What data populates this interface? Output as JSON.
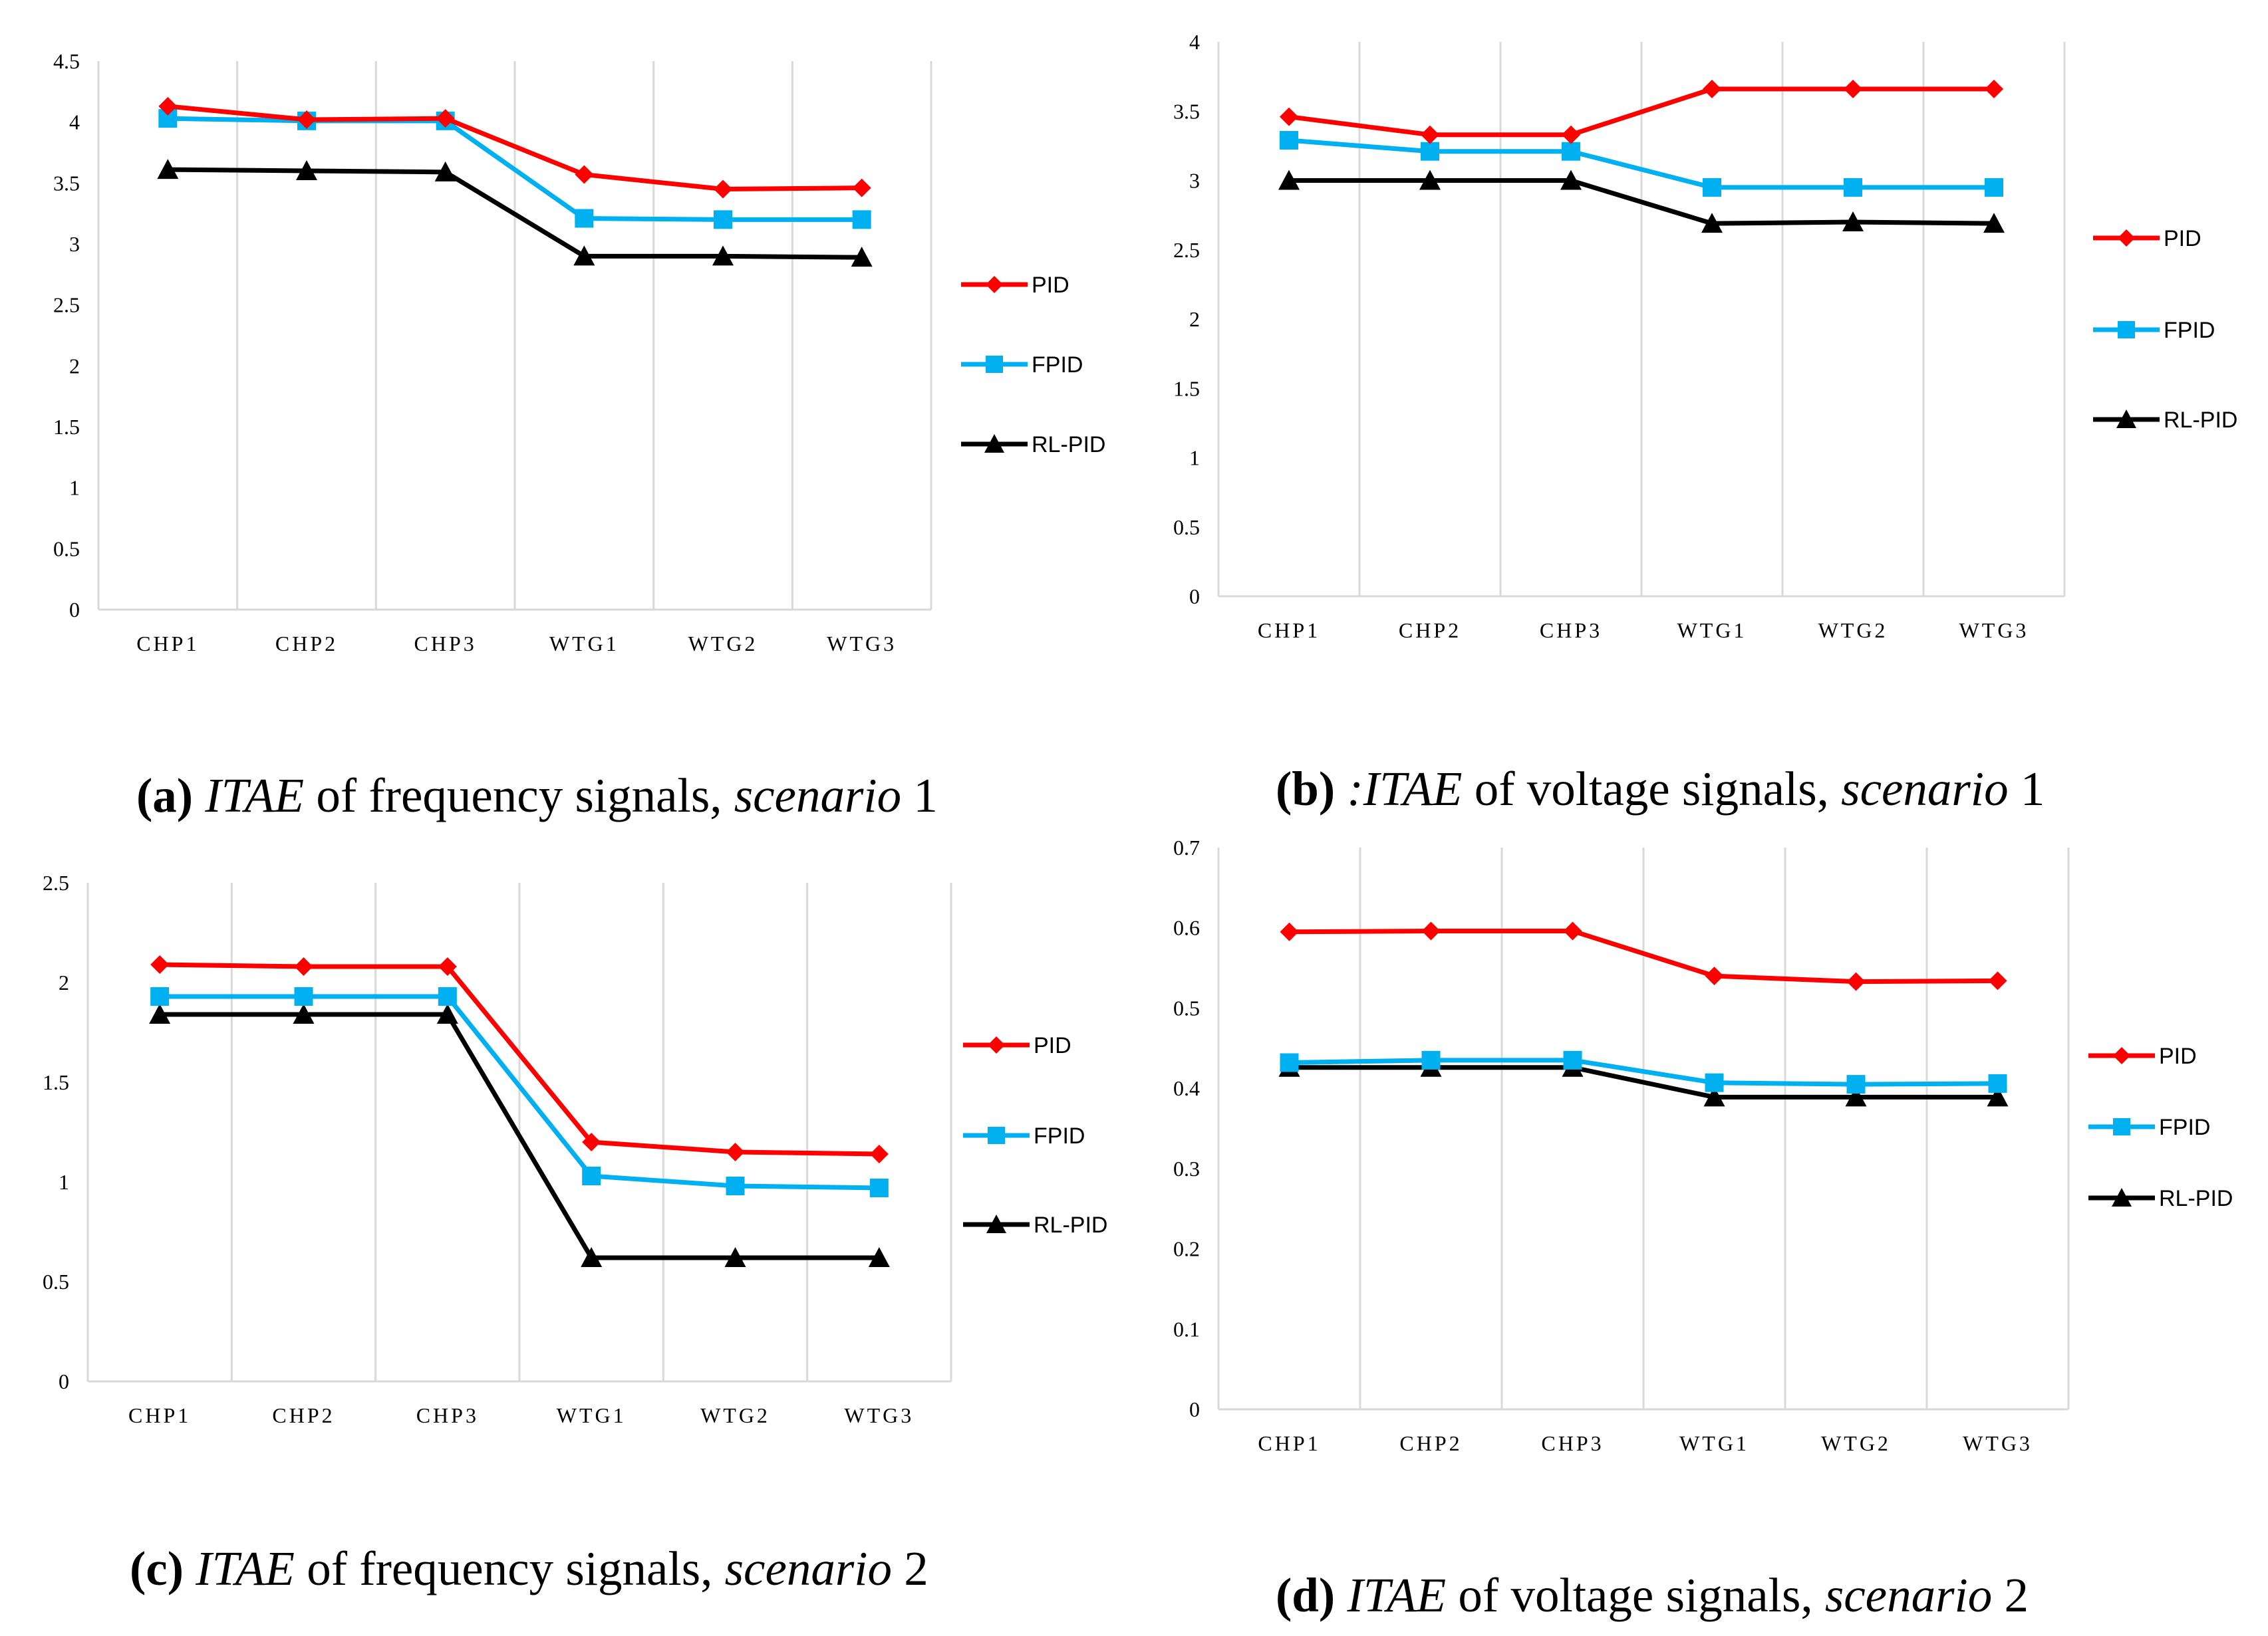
{
  "colors": {
    "PID": "#ff0000",
    "FPID": "#00b0f0",
    "RL-PID": "#000000",
    "grid": "#d9d9d9"
  },
  "chart_data": [
    {
      "id": "a",
      "type": "line",
      "caption": {
        "label": "(a)",
        "itae": "ITAE",
        "middle": " of frequency signals, ",
        "scenario": "scenario",
        "num": " 1"
      },
      "categories": [
        "CHP1",
        "CHP2",
        "CHP3",
        "WTG1",
        "WTG2",
        "WTG3"
      ],
      "yticks": [
        "0",
        "0.5",
        "1",
        "1.5",
        "2",
        "2.5",
        "3",
        "3.5",
        "4",
        "4.5"
      ],
      "ylim": [
        0,
        4.5
      ],
      "legend_position": "right",
      "series": [
        {
          "name": "PID",
          "marker": "diamond",
          "values": [
            4.13,
            4.02,
            4.03,
            3.57,
            3.45,
            3.46
          ]
        },
        {
          "name": "FPID",
          "marker": "square",
          "values": [
            4.03,
            4.01,
            4.01,
            3.21,
            3.2,
            3.2
          ]
        },
        {
          "name": "RL-PID",
          "marker": "triangle",
          "values": [
            3.61,
            3.6,
            3.59,
            2.9,
            2.9,
            2.89
          ]
        }
      ]
    },
    {
      "id": "b",
      "type": "line",
      "caption": {
        "label": "(b)",
        "itae": ":ITAE",
        "middle": " of voltage signals, ",
        "scenario": "scenario",
        "num": " 1"
      },
      "categories": [
        "CHP1",
        "CHP2",
        "CHP3",
        "WTG1",
        "WTG2",
        "WTG3"
      ],
      "yticks": [
        "0",
        "0.5",
        "1",
        "1.5",
        "2",
        "2.5",
        "3",
        "3.5",
        "4"
      ],
      "ylim": [
        0,
        4
      ],
      "legend_position": "right",
      "series": [
        {
          "name": "PID",
          "marker": "diamond",
          "values": [
            3.46,
            3.33,
            3.33,
            3.66,
            3.66,
            3.66
          ]
        },
        {
          "name": "FPID",
          "marker": "square",
          "values": [
            3.29,
            3.21,
            3.21,
            2.95,
            2.95,
            2.95
          ]
        },
        {
          "name": "RL-PID",
          "marker": "triangle",
          "values": [
            3.0,
            3.0,
            3.0,
            2.69,
            2.7,
            2.69
          ]
        }
      ]
    },
    {
      "id": "c",
      "type": "line",
      "caption": {
        "label": "(c)",
        "itae": "ITAE",
        "middle": " of frequency signals, ",
        "scenario": "scenario",
        "num": " 2"
      },
      "categories": [
        "CHP1",
        "CHP2",
        "CHP3",
        "WTG1",
        "WTG2",
        "WTG3"
      ],
      "yticks": [
        "0",
        "0.5",
        "1",
        "1.5",
        "2",
        "2.5"
      ],
      "ylim": [
        0,
        2.5
      ],
      "legend_position": "right",
      "series": [
        {
          "name": "PID",
          "marker": "diamond",
          "values": [
            2.09,
            2.08,
            2.08,
            1.2,
            1.15,
            1.14
          ]
        },
        {
          "name": "FPID",
          "marker": "square",
          "values": [
            1.93,
            1.93,
            1.93,
            1.03,
            0.98,
            0.97
          ]
        },
        {
          "name": "RL-PID",
          "marker": "triangle",
          "values": [
            1.84,
            1.84,
            1.84,
            0.62,
            0.62,
            0.62
          ]
        }
      ]
    },
    {
      "id": "d",
      "type": "line",
      "caption": {
        "label": "(d)",
        "itae": "ITAE",
        "middle": " of voltage signals, ",
        "scenario": "scenario",
        "num": " 2"
      },
      "categories": [
        "CHP1",
        "CHP2",
        "CHP3",
        "WTG1",
        "WTG2",
        "WTG3"
      ],
      "yticks": [
        "0",
        "0.1",
        "0.2",
        "0.3",
        "0.4",
        "0.5",
        "0.6",
        "0.7"
      ],
      "ylim": [
        0,
        0.7
      ],
      "legend_position": "right",
      "series": [
        {
          "name": "PID",
          "marker": "diamond",
          "values": [
            0.595,
            0.596,
            0.596,
            0.54,
            0.533,
            0.534
          ]
        },
        {
          "name": "FPID",
          "marker": "square",
          "values": [
            0.432,
            0.435,
            0.435,
            0.407,
            0.405,
            0.406
          ]
        },
        {
          "name": "RL-PID",
          "marker": "triangle",
          "values": [
            0.426,
            0.426,
            0.426,
            0.389,
            0.389,
            0.389
          ]
        }
      ]
    }
  ]
}
